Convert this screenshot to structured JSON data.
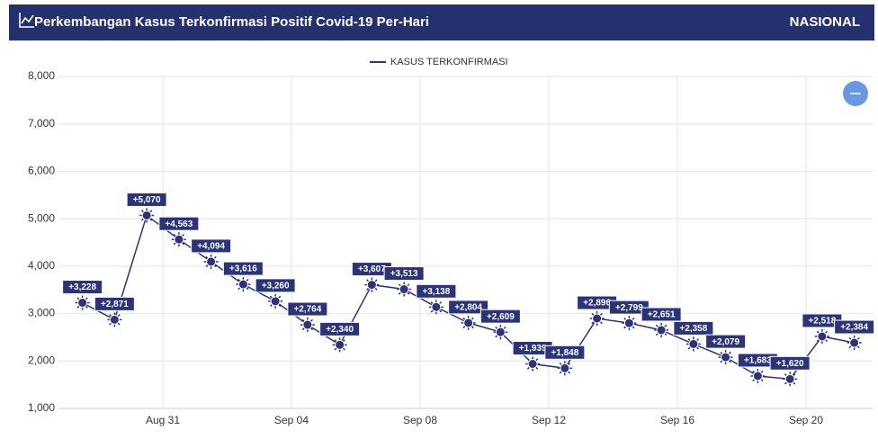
{
  "header": {
    "title": "Perkembangan Kasus Terkonfirmasi Positif Covid-19 Per-Hari",
    "region": "NASIONAL"
  },
  "chart_data": {
    "type": "line",
    "x": [
      "Aug 28",
      "Aug 29",
      "Aug 30",
      "Aug 31",
      "Sep 01",
      "Sep 02",
      "Sep 03",
      "Sep 04",
      "Sep 05",
      "Sep 06",
      "Sep 07",
      "Sep 08",
      "Sep 09",
      "Sep 10",
      "Sep 11",
      "Sep 12",
      "Sep 13",
      "Sep 14",
      "Sep 15",
      "Sep 16",
      "Sep 17",
      "Sep 18",
      "Sep 19",
      "Sep 20",
      "Sep 21"
    ],
    "xticks": [
      "Aug 31",
      "Sep 04",
      "Sep 08",
      "Sep 12",
      "Sep 16",
      "Sep 20"
    ],
    "series": [
      {
        "name": "KASUS TERKONFIRMASI",
        "color": "#2b3479",
        "values": [
          3228,
          2871,
          5070,
          4563,
          4094,
          3616,
          3260,
          2764,
          2340,
          3607,
          3513,
          3138,
          2804,
          2609,
          1939,
          1848,
          2896,
          2799,
          2651,
          2358,
          2079,
          1683,
          1620,
          2518,
          2384
        ],
        "value_labels": [
          "+3,228",
          "+2,871",
          "+5,070",
          "+4,563",
          "+4,094",
          "+3,616",
          "+3,260",
          "+2,764",
          "+2,340",
          "+3,607",
          "+3,513",
          "+3,138",
          "+2,804",
          "+2,609",
          "+1,939",
          "+1,848",
          "+2,896",
          "+2,799",
          "+2,651",
          "+2,358",
          "+2,079",
          "+1,683",
          "+1,620",
          "+2,518",
          "+2,384"
        ]
      }
    ],
    "ylim": [
      1000,
      8000
    ],
    "yticks": [
      {
        "value": 1000,
        "label": "1,000"
      },
      {
        "value": 2000,
        "label": "2,000"
      },
      {
        "value": 3000,
        "label": "3,000"
      },
      {
        "value": 4000,
        "label": "4,000"
      },
      {
        "value": 5000,
        "label": "5,000"
      },
      {
        "value": 6000,
        "label": "6,000"
      },
      {
        "value": 7000,
        "label": "7,000"
      },
      {
        "value": 8000,
        "label": "8,000"
      }
    ],
    "grid": true
  }
}
